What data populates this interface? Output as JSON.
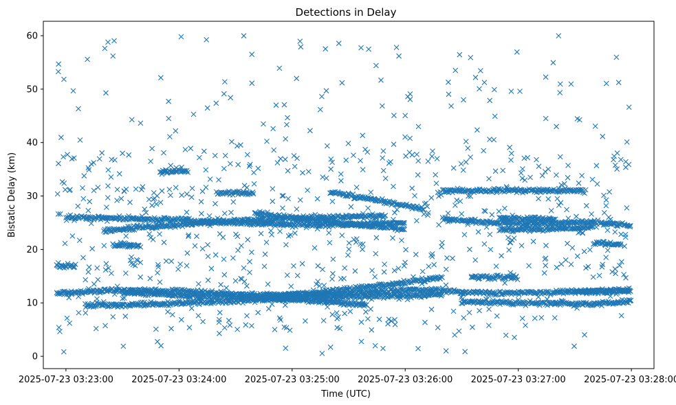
{
  "chart_data": {
    "type": "scatter",
    "title": "Detections in Delay",
    "xlabel": "Time (UTC)",
    "ylabel": "Bistatic Delay (km)",
    "x_axis_kind": "datetime",
    "x_start_time": "2025-07-23 03:22:55",
    "x_end_time": "2025-07-23 03:28:00",
    "xlim": [
      "2025-07-23 03:22:48",
      "2025-07-23 03:28:12"
    ],
    "ylim": [
      -2.3,
      62.7
    ],
    "x_ticks": [
      "2025-07-23 03:23:00",
      "2025-07-23 03:24:00",
      "2025-07-23 03:25:00",
      "2025-07-23 03:26:00",
      "2025-07-23 03:27:00",
      "2025-07-23 03:28:00"
    ],
    "y_ticks": [
      0,
      10,
      20,
      30,
      40,
      50,
      60
    ],
    "marker": "x",
    "marker_color": "#1f77b4",
    "grid": false,
    "tracks": [
      {
        "times": [
          "2025-07-23 03:22:55",
          "2025-07-23 03:23:30",
          "2025-07-23 03:24:00",
          "2025-07-23 03:24:40",
          "2025-07-23 03:25:20",
          "2025-07-23 03:26:00",
          "2025-07-23 03:26:20"
        ],
        "delay_km": [
          11.8,
          12.4,
          12.2,
          11.5,
          11.6,
          12.4,
          12.5
        ]
      },
      {
        "times": [
          "2025-07-23 03:23:10",
          "2025-07-23 03:23:40",
          "2025-07-23 03:24:20",
          "2025-07-23 03:25:00",
          "2025-07-23 03:25:40",
          "2025-07-23 03:26:20"
        ],
        "delay_km": [
          9.6,
          9.7,
          10.2,
          10.8,
          11.2,
          11.5
        ]
      },
      {
        "times": [
          "2025-07-23 03:23:30",
          "2025-07-23 03:24:00",
          "2025-07-23 03:24:40",
          "2025-07-23 03:25:10",
          "2025-07-23 03:25:40"
        ],
        "delay_km": [
          12.0,
          11.4,
          11.0,
          10.4,
          9.6
        ]
      },
      {
        "times": [
          "2025-07-23 03:22:55",
          "2025-07-23 03:23:05"
        ],
        "delay_km": [
          16.9,
          16.8
        ]
      },
      {
        "times": [
          "2025-07-23 03:24:50",
          "2025-07-23 03:25:20",
          "2025-07-23 03:25:50",
          "2025-07-23 03:26:20"
        ],
        "delay_km": [
          11.0,
          12.2,
          13.4,
          14.8
        ]
      },
      {
        "times": [
          "2025-07-23 03:26:20",
          "2025-07-23 03:26:50",
          "2025-07-23 03:27:20",
          "2025-07-23 03:28:00"
        ],
        "delay_km": [
          12.2,
          11.8,
          12.0,
          12.4
        ]
      },
      {
        "times": [
          "2025-07-23 03:26:30",
          "2025-07-23 03:27:00",
          "2025-07-23 03:27:40",
          "2025-07-23 03:28:00"
        ],
        "delay_km": [
          10.2,
          10.0,
          9.8,
          10.3
        ]
      },
      {
        "times": [
          "2025-07-23 03:26:35",
          "2025-07-23 03:27:00"
        ],
        "delay_km": [
          14.8,
          14.7
        ]
      },
      {
        "times": [
          "2025-07-23 03:27:30",
          "2025-07-23 03:28:00"
        ],
        "delay_km": [
          12.0,
          12.2
        ]
      },
      {
        "times": [
          "2025-07-23 03:23:00",
          "2025-07-23 03:23:30",
          "2025-07-23 03:24:00",
          "2025-07-23 03:24:30",
          "2025-07-23 03:25:00",
          "2025-07-23 03:25:30",
          "2025-07-23 03:26:00"
        ],
        "delay_km": [
          26.0,
          25.8,
          25.5,
          25.0,
          24.6,
          24.6,
          25.0
        ]
      },
      {
        "times": [
          "2025-07-23 03:23:20",
          "2025-07-23 03:23:50",
          "2025-07-23 03:24:30",
          "2025-07-23 03:25:10",
          "2025-07-23 03:25:50"
        ],
        "delay_km": [
          23.5,
          24.3,
          25.4,
          26.0,
          26.3
        ]
      },
      {
        "times": [
          "2025-07-23 03:24:40",
          "2025-07-23 03:25:10",
          "2025-07-23 03:25:40",
          "2025-07-23 03:26:00"
        ],
        "delay_km": [
          26.8,
          25.4,
          24.5,
          23.8
        ]
      },
      {
        "times": [
          "2025-07-23 03:25:20",
          "2025-07-23 03:25:40",
          "2025-07-23 03:26:00",
          "2025-07-23 03:26:10"
        ],
        "delay_km": [
          30.7,
          29.6,
          28.2,
          27.5
        ]
      },
      {
        "times": [
          "2025-07-23 03:26:20",
          "2025-07-23 03:26:45",
          "2025-07-23 03:27:10",
          "2025-07-23 03:27:40",
          "2025-07-23 03:28:00"
        ],
        "delay_km": [
          25.8,
          25.0,
          24.8,
          25.2,
          24.4
        ]
      },
      {
        "times": [
          "2025-07-23 03:26:50",
          "2025-07-23 03:27:20",
          "2025-07-23 03:27:40"
        ],
        "delay_km": [
          23.6,
          23.8,
          24.2
        ]
      },
      {
        "times": [
          "2025-07-23 03:26:20",
          "2025-07-23 03:26:50",
          "2025-07-23 03:27:10",
          "2025-07-23 03:27:35"
        ],
        "delay_km": [
          31.0,
          31.1,
          31.0,
          31.0
        ]
      },
      {
        "times": [
          "2025-07-23 03:26:50",
          "2025-07-23 03:27:20"
        ],
        "delay_km": [
          26.0,
          25.6
        ]
      },
      {
        "times": [
          "2025-07-23 03:23:25",
          "2025-07-23 03:23:40"
        ],
        "delay_km": [
          20.8,
          20.7
        ]
      },
      {
        "times": [
          "2025-07-23 03:23:50",
          "2025-07-23 03:24:05"
        ],
        "delay_km": [
          34.5,
          34.6
        ]
      },
      {
        "times": [
          "2025-07-23 03:24:20",
          "2025-07-23 03:24:40"
        ],
        "delay_km": [
          30.6,
          30.5
        ]
      },
      {
        "times": [
          "2025-07-23 03:27:40",
          "2025-07-23 03:27:55"
        ],
        "delay_km": [
          21.3,
          20.9
        ]
      }
    ],
    "noise_point_count": 820
  }
}
